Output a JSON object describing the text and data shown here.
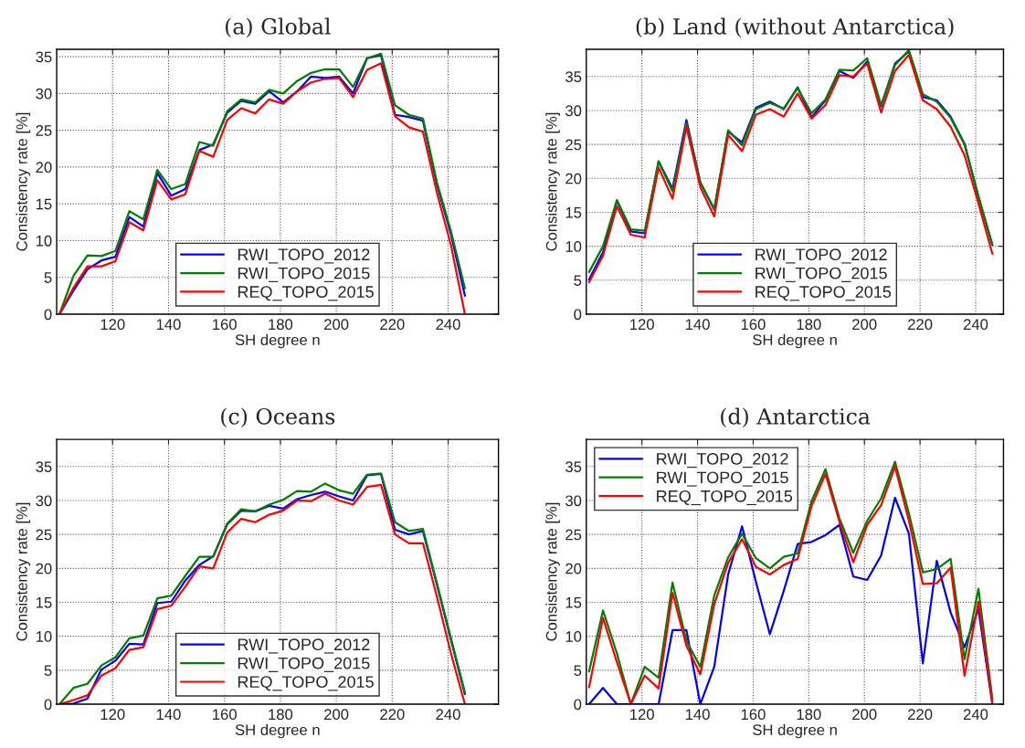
{
  "chart_data": [
    {
      "type": "line",
      "title": "(a) Global",
      "xlabel": "SH degree n",
      "ylabel": "Consistency rate [%]",
      "xlim": [
        100,
        258
      ],
      "xticks": [
        120,
        140,
        160,
        180,
        200,
        220,
        240
      ],
      "ylim": [
        0,
        36
      ],
      "yticks": [
        0,
        5,
        10,
        15,
        20,
        25,
        30,
        35
      ],
      "grid": true,
      "legend": "bottom",
      "line_style": "solid",
      "x": [
        101,
        106,
        111,
        116,
        121,
        126,
        131,
        136,
        141,
        146,
        151,
        156,
        161,
        166,
        171,
        176,
        181,
        186,
        191,
        196,
        201,
        206,
        211,
        216,
        221,
        226,
        231,
        236,
        241,
        246
      ],
      "series": [
        {
          "name": "RWI_TOPO_2012",
          "color": "#0000ff",
          "values": [
            0,
            3.2,
            6.1,
            7.3,
            7.8,
            13.2,
            11.9,
            19.2,
            16.1,
            17.0,
            22.3,
            23.1,
            27.4,
            29.0,
            28.6,
            30.3,
            28.8,
            30.3,
            32.3,
            32.1,
            32.3,
            30.0,
            34.8,
            35.2,
            27.1,
            26.8,
            26.3,
            17.6,
            10.9,
            2.5
          ]
        },
        {
          "name": "RWI_TOPO_2015",
          "color": "#008000",
          "values": [
            0,
            5.2,
            8.0,
            7.9,
            8.6,
            14.0,
            12.9,
            19.6,
            17.0,
            17.7,
            23.4,
            22.9,
            27.6,
            29.2,
            28.8,
            30.5,
            30.0,
            31.7,
            32.8,
            33.3,
            33.3,
            30.9,
            34.8,
            35.4,
            28.4,
            27.1,
            26.6,
            17.9,
            11.3,
            3.5
          ]
        },
        {
          "name": "REQ_TOPO_2015",
          "color": "#ff0000",
          "values": [
            0,
            3.6,
            6.5,
            6.5,
            7.2,
            12.5,
            11.4,
            18.2,
            15.6,
            16.3,
            22.2,
            21.4,
            26.4,
            28.0,
            27.3,
            29.2,
            28.6,
            30.3,
            31.5,
            32.0,
            32.1,
            29.5,
            33.2,
            34.1,
            26.9,
            25.4,
            24.8,
            16.5,
            9.4,
            0
          ]
        }
      ]
    },
    {
      "type": "line",
      "title": "(b) Land (without Antarctica)",
      "xlabel": "SH degree n",
      "ylabel": "Consistency rate [%]",
      "xlim": [
        100,
        250
      ],
      "xticks": [
        120,
        140,
        160,
        180,
        200,
        220,
        240
      ],
      "ylim": [
        0,
        39
      ],
      "yticks": [
        0,
        5,
        10,
        15,
        20,
        25,
        30,
        35
      ],
      "grid": true,
      "legend": "bottom",
      "line_style": "solid",
      "x": [
        101,
        106,
        111,
        116,
        121,
        126,
        131,
        136,
        141,
        146,
        151,
        156,
        161,
        166,
        171,
        176,
        181,
        186,
        191,
        196,
        201,
        206,
        211,
        216,
        221,
        226,
        231,
        236,
        241,
        246
      ],
      "series": [
        {
          "name": "RWI_TOPO_2012",
          "color": "#0000ff",
          "values": [
            5.1,
            9.1,
            16.7,
            12.2,
            11.9,
            22.5,
            18.5,
            28.6,
            19.4,
            15.4,
            26.9,
            25.3,
            30.4,
            31.3,
            30.2,
            33.4,
            29.0,
            31.5,
            35.8,
            34.8,
            37.2,
            30.6,
            36.9,
            38.7,
            32.0,
            31.5,
            29.1,
            25.1,
            17.2,
            10.2
          ]
        },
        {
          "name": "RWI_TOPO_2015",
          "color": "#008000",
          "values": [
            6.2,
            10.0,
            16.8,
            12.5,
            12.3,
            22.5,
            18.1,
            28.1,
            19.4,
            15.5,
            27.1,
            24.9,
            30.2,
            31.1,
            30.3,
            33.3,
            29.6,
            31.6,
            36.0,
            35.9,
            37.7,
            30.8,
            36.7,
            38.9,
            32.4,
            31.3,
            28.9,
            25.0,
            17.4,
            10.2
          ]
        },
        {
          "name": "REQ_TOPO_2015",
          "color": "#ff0000",
          "values": [
            4.7,
            8.6,
            15.9,
            11.7,
            11.3,
            21.6,
            17.0,
            27.6,
            18.7,
            14.4,
            26.4,
            24.0,
            29.4,
            30.2,
            29.1,
            32.5,
            28.8,
            30.8,
            35.2,
            35.0,
            36.9,
            29.7,
            35.8,
            38.2,
            31.5,
            30.2,
            27.6,
            23.4,
            16.3,
            8.9
          ]
        }
      ]
    },
    {
      "type": "line",
      "title": "(c) Oceans",
      "xlabel": "SH degree n",
      "ylabel": "Consistency rate [%]",
      "xlim": [
        100,
        258
      ],
      "xticks": [
        120,
        140,
        160,
        180,
        200,
        220,
        240
      ],
      "ylim": [
        0,
        39
      ],
      "yticks": [
        0,
        5,
        10,
        15,
        20,
        25,
        30,
        35
      ],
      "grid": true,
      "legend": "bottom",
      "line_style": "solid",
      "x": [
        101,
        106,
        111,
        116,
        121,
        126,
        131,
        136,
        141,
        146,
        151,
        156,
        161,
        166,
        171,
        176,
        181,
        186,
        191,
        196,
        201,
        206,
        211,
        216,
        221,
        226,
        231,
        236,
        241,
        246
      ],
      "series": [
        {
          "name": "RWI_TOPO_2012",
          "color": "#0000ff",
          "values": [
            0,
            0.1,
            0.8,
            5.1,
            6.4,
            8.9,
            8.8,
            14.9,
            15.1,
            18.2,
            20.5,
            21.8,
            26.5,
            28.5,
            28.4,
            29.2,
            28.8,
            30.2,
            30.8,
            31.3,
            30.6,
            30.0,
            33.7,
            33.9,
            25.7,
            25.0,
            25.5,
            17.6,
            9.5,
            1.5
          ]
        },
        {
          "name": "RWI_TOPO_2015",
          "color": "#008000",
          "values": [
            0,
            2.4,
            3.0,
            5.7,
            6.9,
            9.7,
            10.1,
            15.6,
            16.0,
            18.9,
            21.7,
            21.7,
            26.6,
            28.7,
            28.4,
            29.4,
            30.1,
            31.4,
            31.3,
            32.5,
            31.5,
            31.0,
            33.8,
            34.0,
            26.8,
            25.5,
            25.8,
            17.8,
            9.7,
            1.7
          ]
        },
        {
          "name": "REQ_TOPO_2015",
          "color": "#ff0000",
          "values": [
            0,
            0.6,
            1.3,
            4.2,
            5.3,
            8.0,
            8.4,
            14.0,
            14.5,
            17.3,
            20.3,
            20.0,
            25.3,
            27.3,
            26.8,
            27.9,
            28.5,
            30.0,
            29.9,
            31.0,
            30.0,
            29.4,
            32.0,
            32.3,
            25.0,
            23.7,
            23.7,
            15.8,
            7.5,
            0
          ]
        }
      ]
    },
    {
      "type": "line",
      "title": "(d) Antarctica",
      "xlabel": "SH degree n",
      "ylabel": "Consistency rate [%]",
      "xlim": [
        100,
        250
      ],
      "xticks": [
        120,
        140,
        160,
        180,
        200,
        220,
        240
      ],
      "ylim": [
        0,
        39
      ],
      "yticks": [
        0,
        5,
        10,
        15,
        20,
        25,
        30,
        35
      ],
      "grid": true,
      "legend": "top left",
      "line_style": "solid",
      "x": [
        101,
        106,
        111,
        116,
        121,
        126,
        131,
        136,
        141,
        146,
        151,
        156,
        161,
        166,
        171,
        176,
        181,
        186,
        191,
        196,
        201,
        206,
        211,
        216,
        221,
        226,
        231,
        236,
        241,
        246
      ],
      "series": [
        {
          "name": "RWI_TOPO_2012",
          "color": "#0000ff",
          "values": [
            0,
            2.4,
            0,
            0,
            0,
            0,
            10.9,
            10.9,
            0,
            5.5,
            19.1,
            26.2,
            18.0,
            10.3,
            16.7,
            23.6,
            23.9,
            24.9,
            26.4,
            18.8,
            18.3,
            21.9,
            30.4,
            25.1,
            6.0,
            21.1,
            13.5,
            8.4,
            14.0,
            0
          ]
        },
        {
          "name": "RWI_TOPO_2015",
          "color": "#008000",
          "values": [
            4.8,
            13.8,
            7.5,
            0,
            5.5,
            3.9,
            17.9,
            9.3,
            5.5,
            16.0,
            21.6,
            25.1,
            21.5,
            20.0,
            21.7,
            22.2,
            29.9,
            34.6,
            27.4,
            22.3,
            27.0,
            30.3,
            35.7,
            28.1,
            19.4,
            19.9,
            21.4,
            6.6,
            17.0,
            0.8
          ]
        },
        {
          "name": "REQ_TOPO_2015",
          "color": "#ff0000",
          "values": [
            2.5,
            12.7,
            6.2,
            0,
            4.2,
            2.3,
            16.4,
            8.6,
            4.4,
            14.7,
            20.8,
            24.3,
            20.2,
            19.1,
            20.5,
            21.4,
            29.2,
            33.9,
            26.9,
            20.9,
            26.4,
            29.3,
            35.0,
            27.0,
            17.7,
            17.8,
            20.1,
            4.2,
            15.1,
            0.3
          ]
        }
      ]
    }
  ]
}
